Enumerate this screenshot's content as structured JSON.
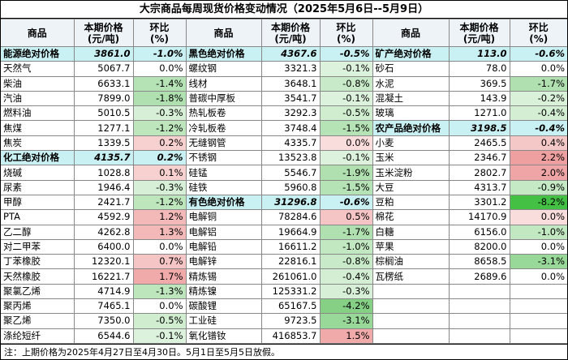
{
  "title": "大宗商品每周现货价格变动情况（2025年5月6日--5月9日）",
  "headers": [
    "商品",
    "本期价格\n(元/吨)",
    "环比\n(%)"
  ],
  "groups": [
    {
      "rows": [
        {
          "name": "能源绝对价格",
          "price": "3861.0",
          "change": "-1.0%",
          "fill": "#c9f1f3"
        },
        {
          "name": "天然气",
          "price": "5067.7",
          "change": "0.0%"
        },
        {
          "name": "柴油",
          "price": "6633.1",
          "change": "-1.4%",
          "color": "#b6e3b6"
        },
        {
          "name": "汽油",
          "price": "7899.0",
          "change": "-1.8%",
          "color": "#b0e0b0"
        },
        {
          "name": "燃料油",
          "price": "5010.5",
          "change": "-0.3%",
          "color": "#d6efd6"
        },
        {
          "name": "焦煤",
          "price": "1277.1",
          "change": "-1.2%",
          "color": "#bde6bd"
        },
        {
          "name": "焦炭",
          "price": "1339.5",
          "change": "0.2%",
          "color": "#f7d0d0"
        },
        {
          "name": "化工绝对价格",
          "price": "4135.7",
          "change": "0.2%",
          "fill": "#c9f1f3"
        },
        {
          "name": "烧碱",
          "price": "1028.8",
          "change": "0.1%",
          "color": "#f7d0d0"
        },
        {
          "name": "尿素",
          "price": "1946.4",
          "change": "-0.3%",
          "color": "#d6efd6"
        },
        {
          "name": "甲醇",
          "price": "2421.7",
          "change": "-1.2%",
          "color": "#bde6bd"
        },
        {
          "name": "PTA",
          "price": "4592.9",
          "change": "1.2%",
          "color": "#f3b8b8"
        },
        {
          "name": "乙二醇",
          "price": "4262.8",
          "change": "1.3%",
          "color": "#f3b8b8"
        },
        {
          "name": "对二甲苯",
          "price": "6400.0",
          "change": "0.0%"
        },
        {
          "name": "丁苯橡胶",
          "price": "12320.1",
          "change": "0.7%",
          "color": "#f5c4c4"
        },
        {
          "name": "天然橡胶",
          "price": "16221.7",
          "change": "1.7%",
          "color": "#f0aaaa"
        },
        {
          "name": "聚氯乙烯",
          "price": "4714.9",
          "change": "-1.3%",
          "color": "#bde6bd"
        },
        {
          "name": "聚丙烯",
          "price": "7465.1",
          "change": "0.0%"
        },
        {
          "name": "聚乙烯",
          "price": "7350.0",
          "change": "-0.5%",
          "color": "#d0edd0"
        },
        {
          "name": "涤纶短纤",
          "price": "6544.6",
          "change": "-0.1%",
          "color": "#ddf2dd"
        }
      ]
    },
    {
      "rows": [
        {
          "name": "黑色绝对价格",
          "price": "4367.6",
          "change": "-0.5%",
          "fill": "#c9f1f3"
        },
        {
          "name": "螺纹钢",
          "price": "3321.3",
          "change": "-0.1%",
          "color": "#ddf2dd"
        },
        {
          "name": "线材",
          "price": "3648.1",
          "change": "-0.8%",
          "color": "#c8eac8"
        },
        {
          "name": "普碳中厚板",
          "price": "3541.7",
          "change": "-0.1%",
          "color": "#ddf2dd"
        },
        {
          "name": "热轧板卷",
          "price": "3292.3",
          "change": "-0.5%",
          "color": "#d0edd0"
        },
        {
          "name": "冷轧板卷",
          "price": "3748.4",
          "change": "-1.5%",
          "color": "#b6e3b6"
        },
        {
          "name": "无缝钢管",
          "price": "4335.7",
          "change": "0.0%",
          "color": "#f9dcdc"
        },
        {
          "name": "不锈钢",
          "price": "13523.8",
          "change": "-0.1%",
          "color": "#ddf2dd"
        },
        {
          "name": "硅锰",
          "price": "5546.7",
          "change": "-1.9%",
          "color": "#b0e0b0"
        },
        {
          "name": "硅铁",
          "price": "5960.8",
          "change": "-1.5%",
          "color": "#b6e3b6"
        },
        {
          "name": "有色绝对价格",
          "price": "31296.8",
          "change": "-0.6%",
          "fill": "#c9f1f3"
        },
        {
          "name": "电解铜",
          "price": "78284.6",
          "change": "0.5%",
          "color": "#f5c4c4"
        },
        {
          "name": "电解铝",
          "price": "19664.9",
          "change": "-1.7%",
          "color": "#b0e0b0"
        },
        {
          "name": "电解铅",
          "price": "16611.2",
          "change": "-1.0%",
          "color": "#c2e8c2"
        },
        {
          "name": "电解锌",
          "price": "22816.1",
          "change": "-0.8%",
          "color": "#c8eac8"
        },
        {
          "name": "精炼锡",
          "price": "261061.0",
          "change": "-0.4%",
          "color": "#d3eed3"
        },
        {
          "name": "精炼镍",
          "price": "125331.2",
          "change": "-0.3%",
          "color": "#d6efd6"
        },
        {
          "name": "碳酸锂",
          "price": "65167.5",
          "change": "-4.2%",
          "color": "#86d086"
        },
        {
          "name": "工业硅",
          "price": "9723.5",
          "change": "-3.1%",
          "color": "#98d898"
        },
        {
          "name": "氧化镨钕",
          "price": "416853.7",
          "change": "1.5%",
          "color": "#f0aaaa"
        }
      ]
    },
    {
      "rows": [
        {
          "name": "矿产绝对价格",
          "price": "113.0",
          "change": "-0.6%",
          "fill": "#c9f1f3"
        },
        {
          "name": "砂石",
          "price": "78.0",
          "change": "0.0%"
        },
        {
          "name": "水泥",
          "price": "369.5",
          "change": "-1.7%",
          "color": "#b0e0b0"
        },
        {
          "name": "混凝土",
          "price": "143.9",
          "change": "-0.2%",
          "color": "#d9f0d9"
        },
        {
          "name": "玻璃",
          "price": "1271.0",
          "change": "-0.4%",
          "color": "#d3eed3"
        },
        {
          "name": "农产品绝对价格",
          "price": "3198.5",
          "change": "-0.4%",
          "fill": "#c9f1f3"
        },
        {
          "name": "小麦",
          "price": "2465.5",
          "change": "0.4%",
          "color": "#f5c8c8"
        },
        {
          "name": "玉米",
          "price": "2346.7",
          "change": "2.2%",
          "color": "#ee9f9f"
        },
        {
          "name": "玉米淀粉",
          "price": "2802.7",
          "change": "2.0%",
          "color": "#efa5a5"
        },
        {
          "name": "大豆",
          "price": "4313.7",
          "change": "-0.9%",
          "color": "#c5e9c5"
        },
        {
          "name": "豆粕",
          "price": "3301.2",
          "change": "-8.2%",
          "color": "#44c044"
        },
        {
          "name": "棉花",
          "price": "14170.9",
          "change": "0.0%",
          "color": "#f9dcdc"
        },
        {
          "name": "白糖",
          "price": "6156.0",
          "change": "-1.0%",
          "color": "#c2e8c2"
        },
        {
          "name": "苹果",
          "price": "8200.0",
          "change": "0.0%"
        },
        {
          "name": "棕榈油",
          "price": "8658.5",
          "change": "-3.1%",
          "color": "#98d898"
        },
        {
          "name": "瓦楞纸",
          "price": "2689.6",
          "change": "0.0%"
        }
      ]
    }
  ],
  "note": "注：上期价格为2025年4月27日至4月30日。5月1日至5月5日放假。"
}
